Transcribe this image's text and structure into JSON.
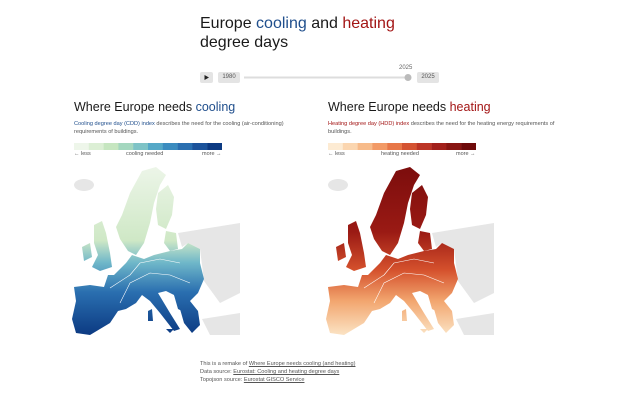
{
  "title": {
    "part1": "Europe ",
    "cooling": "cooling",
    "part2": " and ",
    "heating": "heating",
    "part3": "degree days"
  },
  "slider": {
    "start": "1980",
    "current": "2025",
    "end": "2025"
  },
  "panels": [
    {
      "heading": "Where Europe needs ",
      "highlight": "cooling",
      "index_name": "Cooling degree day (CDD) index",
      "description": " describes the need for the cooling (air-conditioning) requirements of buildings.",
      "legend": {
        "less": "← less",
        "label": "cooling needed",
        "more": "more →"
      }
    },
    {
      "heading": "Where Europe needs ",
      "highlight": "heating",
      "index_name": "Heating degree day (HDD) index",
      "description": " describes the need for the heating energy requirements of buildings.",
      "legend": {
        "less": "← less",
        "label": "heating needed",
        "more": "more →"
      }
    }
  ],
  "footer": [
    {
      "text": "This is a remake of ",
      "link": "Where Europe needs cooling (and heating)"
    },
    {
      "text": "Data source: ",
      "link": "Eurostat: Cooling and heating degree days"
    },
    {
      "text": "Topojson source: ",
      "link": "Eurostat GISCO Service"
    }
  ]
}
